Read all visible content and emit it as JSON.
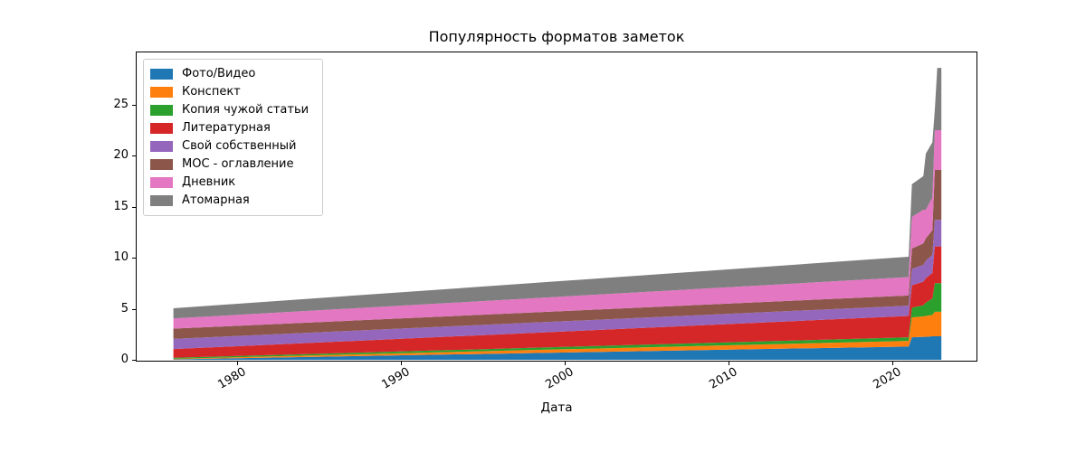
{
  "figure": {
    "background": "#ffffff"
  },
  "chart_data": {
    "type": "area",
    "stacked": true,
    "title": "Популярность форматов заметок",
    "xlabel": "Дата",
    "ylabel": "",
    "grid": false,
    "legend_position": "upper left",
    "xlim": [
      1973.8,
      2025.2
    ],
    "ylim": [
      0,
      30.2
    ],
    "xticks": [
      1980,
      1990,
      2000,
      2010,
      2020
    ],
    "yticks": [
      0,
      5,
      10,
      15,
      20,
      25
    ],
    "x": [
      1976.1,
      2021.0,
      2021.2,
      2021.9,
      2022.05,
      2022.45,
      2022.6,
      2022.75,
      2023.0
    ],
    "series": [
      {
        "name": "Фото/Видео",
        "color": "#1f77b4",
        "values": [
          0.05,
          1.3,
          2.2,
          2.25,
          2.25,
          2.3,
          2.3,
          2.3,
          2.3
        ]
      },
      {
        "name": "Конспект",
        "color": "#ff7f0e",
        "values": [
          0.05,
          0.55,
          1.95,
          2.0,
          2.05,
          2.1,
          2.4,
          2.4,
          2.4
        ]
      },
      {
        "name": "Копия чужой статьи",
        "color": "#2ca02c",
        "values": [
          0.1,
          0.35,
          0.95,
          1.1,
          1.3,
          1.6,
          2.8,
          2.8,
          2.8
        ]
      },
      {
        "name": "Литературная",
        "color": "#d62728",
        "values": [
          0.85,
          2.1,
          2.2,
          2.3,
          2.4,
          2.5,
          3.6,
          3.6,
          3.6
        ]
      },
      {
        "name": "Свой собственный",
        "color": "#9467bd",
        "values": [
          1.0,
          1.0,
          1.6,
          1.65,
          1.7,
          1.8,
          2.6,
          2.6,
          2.6
        ]
      },
      {
        "name": "МОС - оглавление",
        "color": "#8c564b",
        "values": [
          1.0,
          1.0,
          2.0,
          2.1,
          2.2,
          2.4,
          4.9,
          4.9,
          4.9
        ]
      },
      {
        "name": "Дневник",
        "color": "#e377c2",
        "values": [
          1.0,
          1.8,
          3.1,
          3.3,
          2.8,
          3.2,
          3.9,
          3.9,
          3.9
        ]
      },
      {
        "name": "Атомарная",
        "color": "#7f7f7f",
        "values": [
          1.0,
          2.0,
          3.2,
          3.3,
          5.5,
          5.4,
          2.0,
          6.1,
          6.1
        ]
      }
    ]
  }
}
